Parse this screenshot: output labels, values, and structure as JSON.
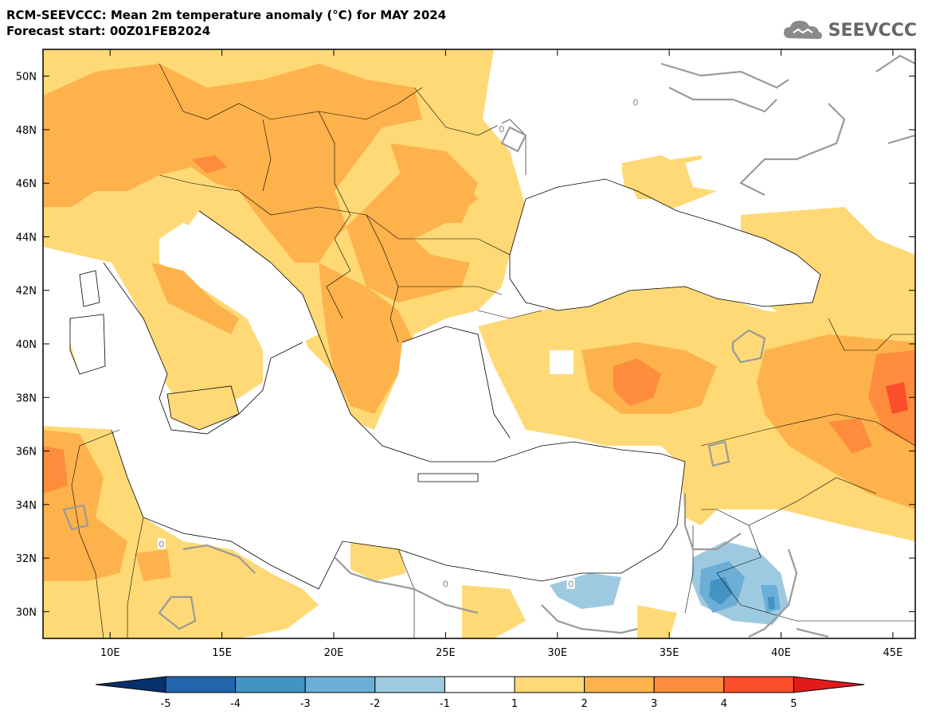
{
  "title": {
    "line1": "RCM-SEEVCCC: Mean 2m temperature anomaly (°C) for MAY 2024",
    "line2": "Forecast start: 00Z01FEB2024"
  },
  "logo": {
    "text": "SEEVCCC",
    "icon": "cloud-icon"
  },
  "map": {
    "lon_range": [
      7,
      46
    ],
    "lat_range": [
      29,
      51
    ],
    "x_ticks": [
      {
        "value": 10,
        "label": "10E"
      },
      {
        "value": 15,
        "label": "15E"
      },
      {
        "value": 20,
        "label": "20E"
      },
      {
        "value": 25,
        "label": "25E"
      },
      {
        "value": 30,
        "label": "30E"
      },
      {
        "value": 35,
        "label": "35E"
      },
      {
        "value": 40,
        "label": "40E"
      },
      {
        "value": 45,
        "label": "45E"
      }
    ],
    "y_ticks": [
      {
        "value": 50,
        "label": "50N"
      },
      {
        "value": 48,
        "label": "48N"
      },
      {
        "value": 46,
        "label": "46N"
      },
      {
        "value": 44,
        "label": "44N"
      },
      {
        "value": 42,
        "label": "42N"
      },
      {
        "value": 40,
        "label": "40N"
      },
      {
        "value": 38,
        "label": "38N"
      },
      {
        "value": 36,
        "label": "36N"
      },
      {
        "value": 34,
        "label": "34N"
      },
      {
        "value": 32,
        "label": "32N"
      },
      {
        "value": 30,
        "label": "30N"
      }
    ],
    "contour_labels": [
      {
        "text": "0",
        "lon": 27.5,
        "lat": 48.0
      },
      {
        "text": "0",
        "lon": 33.5,
        "lat": 49.0
      },
      {
        "text": "0",
        "lon": 12.3,
        "lat": 32.5
      },
      {
        "text": "0",
        "lon": 25.0,
        "lat": 31.0
      },
      {
        "text": "0",
        "lon": 30.6,
        "lat": 31.0
      }
    ]
  },
  "colorbar": {
    "levels": [
      "-5",
      "-4",
      "-3",
      "-2",
      "-1",
      "1",
      "2",
      "3",
      "4",
      "5"
    ],
    "colors": [
      "#08306b",
      "#2166ac",
      "#4393c3",
      "#6baed6",
      "#9ecae1",
      "#ffffff",
      "#fed976",
      "#feb24c",
      "#fd8d3c",
      "#fc4e2a",
      "#e31a1c"
    ]
  }
}
